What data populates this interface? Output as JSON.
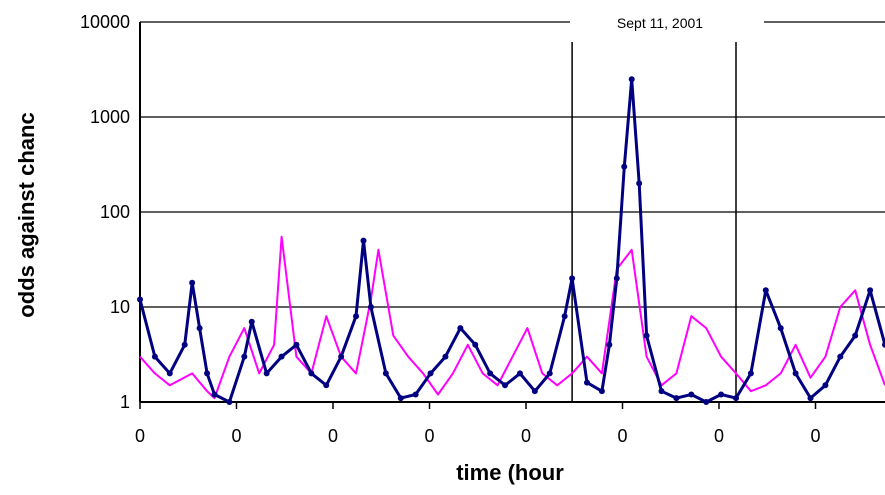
{
  "chart_data": {
    "type": "line",
    "title": "",
    "xlabel": "time (hour",
    "ylabel": "odds against chanc",
    "y_scale": "log",
    "ylim": [
      1,
      10000
    ],
    "y_ticks": [
      "1",
      "10",
      "100",
      "1000",
      "10000"
    ],
    "x_tick_labels": [
      "0",
      "0",
      "0",
      "0",
      "0",
      "0",
      "0",
      "0"
    ],
    "xlim": [
      0,
      1
    ],
    "annotation": "Sept 11, 2001",
    "event_lines_x": [
      0.58,
      0.8
    ],
    "grid": "horizontal",
    "legend": "none",
    "colors": {
      "series_a": "#ff00ff",
      "series_b": "#000080",
      "axis": "#000000"
    },
    "series": [
      {
        "color": "#ff00ff",
        "x": [
          0.0,
          0.02,
          0.04,
          0.07,
          0.09,
          0.1,
          0.12,
          0.14,
          0.16,
          0.18,
          0.19,
          0.21,
          0.23,
          0.25,
          0.27,
          0.29,
          0.31,
          0.32,
          0.34,
          0.36,
          0.38,
          0.4,
          0.42,
          0.44,
          0.46,
          0.48,
          0.5,
          0.52,
          0.54,
          0.56,
          0.58,
          0.6,
          0.62,
          0.64,
          0.66,
          0.68,
          0.7,
          0.72,
          0.74,
          0.76,
          0.78,
          0.8,
          0.82,
          0.84,
          0.86,
          0.88,
          0.9,
          0.92,
          0.94,
          0.96,
          0.98,
          1.0
        ],
        "y": [
          3,
          2,
          1.5,
          2,
          1.3,
          1.1,
          3,
          6,
          2,
          4,
          55,
          3,
          2,
          8,
          3,
          2,
          12,
          40,
          5,
          3,
          2,
          1.2,
          2,
          4,
          2,
          1.5,
          3,
          6,
          2,
          1.5,
          2,
          3,
          2,
          25,
          40,
          3,
          1.5,
          2,
          8,
          6,
          3,
          2,
          1.3,
          1.5,
          2,
          4,
          1.8,
          3,
          10,
          15,
          4,
          1.5
        ]
      },
      {
        "color": "#000080",
        "x": [
          0.0,
          0.02,
          0.04,
          0.06,
          0.07,
          0.08,
          0.09,
          0.1,
          0.12,
          0.14,
          0.15,
          0.17,
          0.19,
          0.21,
          0.23,
          0.25,
          0.27,
          0.29,
          0.3,
          0.31,
          0.33,
          0.35,
          0.37,
          0.39,
          0.41,
          0.43,
          0.45,
          0.47,
          0.49,
          0.51,
          0.53,
          0.55,
          0.57,
          0.58,
          0.6,
          0.62,
          0.63,
          0.64,
          0.65,
          0.66,
          0.67,
          0.68,
          0.7,
          0.72,
          0.74,
          0.76,
          0.78,
          0.8,
          0.82,
          0.84,
          0.86,
          0.88,
          0.9,
          0.92,
          0.94,
          0.96,
          0.98,
          1.0
        ],
        "y": [
          12,
          3,
          2,
          4,
          18,
          6,
          2,
          1.2,
          1.0,
          3,
          7,
          2,
          3,
          4,
          2,
          1.5,
          3,
          8,
          50,
          10,
          2,
          1.1,
          1.2,
          2,
          3,
          6,
          4,
          2,
          1.5,
          2,
          1.3,
          2,
          8,
          20,
          1.6,
          1.3,
          4,
          20,
          300,
          2500,
          200,
          5,
          1.3,
          1.1,
          1.2,
          1.0,
          1.2,
          1.1,
          2,
          15,
          6,
          2,
          1.1,
          1.5,
          3,
          5,
          15,
          4
        ]
      }
    ]
  }
}
